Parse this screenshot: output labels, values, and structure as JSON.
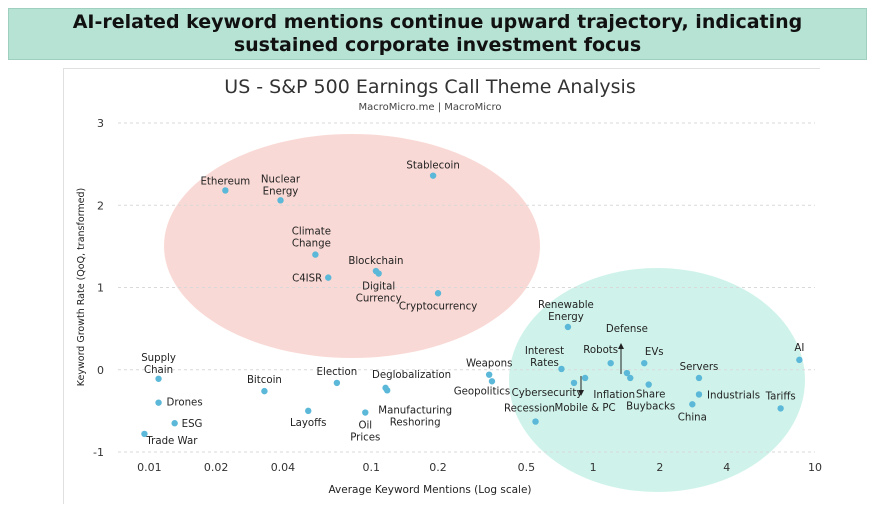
{
  "banner": {
    "headline": "AI-related keyword mentions continue upward trajectory, indicating sustained corporate investment focus"
  },
  "colors": {
    "banner_bg": "#b7e3d4",
    "point": "#5bb8d8",
    "cluster_red": "#f4b9b2",
    "cluster_teal": "#a8ead9"
  },
  "chart_data": {
    "type": "scatter",
    "title": "US - S&P 500 Earnings Call Theme Analysis",
    "subtitle": "MacroMicro.me | MacroMicro",
    "xlabel": "Average Keyword Mentions (Log scale)",
    "ylabel": "Keyword Growth Rate (QoQ, transformed)",
    "x_scale": "log",
    "xlim": [
      0.007,
      10
    ],
    "ylim": [
      -1,
      3
    ],
    "x_ticks": [
      0.01,
      0.02,
      0.04,
      0.1,
      0.2,
      0.5,
      1,
      2,
      4,
      10
    ],
    "x_tick_labels": [
      "0.01",
      "0.02",
      "0.04",
      "0.1",
      "0.2",
      "0.5",
      "1",
      "2",
      "4",
      "10"
    ],
    "y_ticks": [
      -1,
      0,
      1,
      2,
      3
    ],
    "y_tick_labels": [
      "-1",
      "0",
      "1",
      "2",
      "3"
    ],
    "grid": "horizontal dashed",
    "points": [
      {
        "label": "Ethereum",
        "x": 0.022,
        "y": 2.18
      },
      {
        "label": "Nuclear Energy",
        "x": 0.039,
        "y": 2.06
      },
      {
        "label": "Stablecoin",
        "x": 0.19,
        "y": 2.36
      },
      {
        "label": "Climate Change",
        "x": 0.056,
        "y": 1.4
      },
      {
        "label": "Blockchain",
        "x": 0.105,
        "y": 1.2
      },
      {
        "label": "Digital Currency",
        "x": 0.108,
        "y": 1.17
      },
      {
        "label": "C4ISR",
        "x": 0.064,
        "y": 1.12
      },
      {
        "label": "Cryptocurrency",
        "x": 0.2,
        "y": 0.93
      },
      {
        "label": "Supply Chain",
        "x": 0.011,
        "y": -0.11
      },
      {
        "label": "Drones",
        "x": 0.011,
        "y": -0.4
      },
      {
        "label": "ESG",
        "x": 0.013,
        "y": -0.65
      },
      {
        "label": "Trade War",
        "x": 0.0095,
        "y": -0.78
      },
      {
        "label": "Bitcoin",
        "x": 0.033,
        "y": -0.26
      },
      {
        "label": "Layoffs",
        "x": 0.052,
        "y": -0.5
      },
      {
        "label": "Election",
        "x": 0.07,
        "y": -0.16
      },
      {
        "label": "Oil Prices",
        "x": 0.094,
        "y": -0.52
      },
      {
        "label": "Deglobalization",
        "x": 0.116,
        "y": -0.22
      },
      {
        "label": "Manufacturing Reshoring",
        "x": 0.118,
        "y": -0.25
      },
      {
        "label": "Weapons",
        "x": 0.34,
        "y": -0.06
      },
      {
        "label": "Geopolitics",
        "x": 0.35,
        "y": -0.14
      },
      {
        "label": "Recession",
        "x": 0.55,
        "y": -0.63
      },
      {
        "label": "Renewable Energy",
        "x": 0.77,
        "y": 0.52
      },
      {
        "label": "Interest Rates",
        "x": 0.72,
        "y": 0.01
      },
      {
        "label": "Cybersecurity",
        "x": 0.82,
        "y": -0.16
      },
      {
        "label": "Mobile & PC",
        "x": 0.92,
        "y": -0.1
      },
      {
        "label": "Robots",
        "x": 1.2,
        "y": 0.08
      },
      {
        "label": "Defense",
        "x": 1.42,
        "y": -0.04
      },
      {
        "label": "Inflation",
        "x": 1.47,
        "y": -0.1
      },
      {
        "label": "EVs",
        "x": 1.7,
        "y": 0.08
      },
      {
        "label": "Share Buybacks",
        "x": 1.78,
        "y": -0.18
      },
      {
        "label": "Servers",
        "x": 3.0,
        "y": -0.1
      },
      {
        "label": "Industrials",
        "x": 3.0,
        "y": -0.3
      },
      {
        "label": "China",
        "x": 2.8,
        "y": -0.42
      },
      {
        "label": "AI",
        "x": 8.5,
        "y": 0.12
      },
      {
        "label": "Tariffs",
        "x": 7.0,
        "y": -0.47
      }
    ]
  }
}
